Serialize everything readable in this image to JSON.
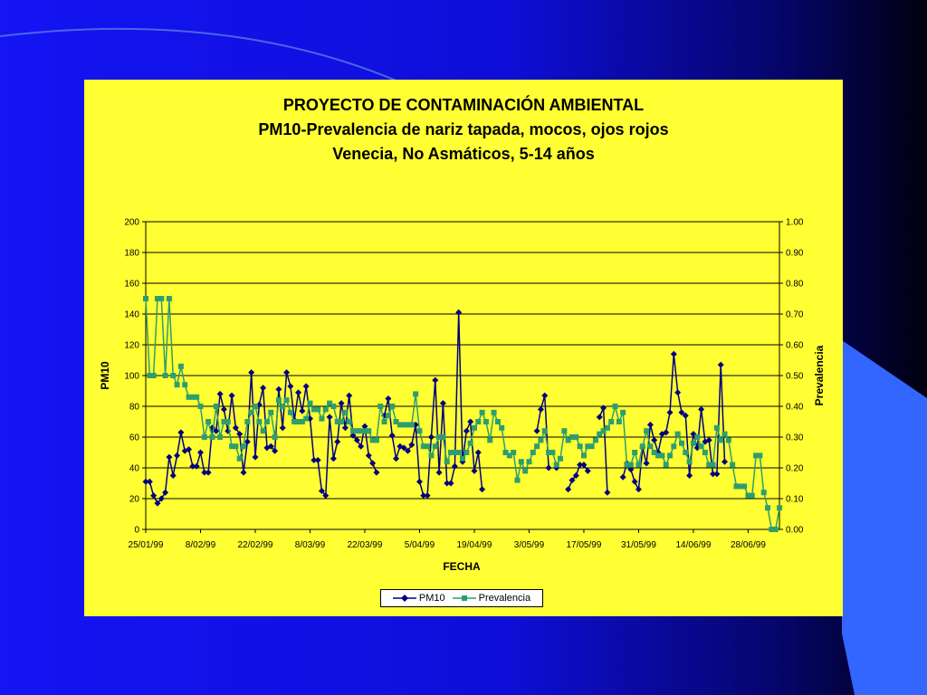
{
  "chart_data": {
    "type": "line",
    "title": [
      "PROYECTO DE CONTAMINACIÓN AMBIENTAL",
      "PM10-Prevalencia de nariz tapada, mocos, ojos rojos",
      "Venecia, No Asmáticos, 5-14 años"
    ],
    "xlabel": "FECHA",
    "ylabel": "PM10",
    "y2label": "Prevalencia",
    "x_tick_labels": [
      "25/01/99",
      "8/02/99",
      "22/02/99",
      "8/03/99",
      "22/03/99",
      "5/04/99",
      "19/04/99",
      "3/05/99",
      "17/05/99",
      "31/05/99",
      "14/06/99",
      "28/06/99"
    ],
    "ylim": [
      0,
      200
    ],
    "y_ticks": [
      "0",
      "20",
      "40",
      "60",
      "80",
      "100",
      "120",
      "140",
      "160",
      "180",
      "200"
    ],
    "y2lim": [
      0,
      1
    ],
    "y2_ticks": [
      "0.00",
      "0.10",
      "0.20",
      "0.30",
      "0.40",
      "0.50",
      "0.60",
      "0.70",
      "0.80",
      "0.90",
      "1.00"
    ],
    "grid": true,
    "legend_position": "bottom-center",
    "series": [
      {
        "name": "PM10",
        "axis": "left",
        "color": "#000080",
        "marker": "diamond",
        "values": [
          31,
          31,
          22,
          17,
          20,
          24,
          47,
          35,
          48,
          63,
          51,
          52,
          41,
          41,
          50,
          37,
          37,
          66,
          64,
          88,
          78,
          64,
          87,
          66,
          62,
          37,
          57,
          102,
          47,
          81,
          92,
          53,
          54,
          51,
          91,
          66,
          102,
          93,
          71,
          89,
          77,
          93,
          72,
          45,
          45,
          25,
          22,
          73,
          46,
          57,
          82,
          66,
          87,
          61,
          58,
          54,
          67,
          48,
          43,
          37,
          null,
          74,
          85,
          61,
          46,
          54,
          53,
          51,
          55,
          68,
          31,
          22,
          22,
          60,
          97,
          37,
          82,
          30,
          30,
          41,
          141,
          44,
          64,
          70,
          38,
          50,
          26,
          null,
          null,
          null,
          null,
          null,
          null,
          null,
          null,
          null,
          null,
          null,
          null,
          null,
          64,
          78,
          87,
          40,
          null,
          40,
          null,
          null,
          26,
          32,
          35,
          42,
          42,
          38,
          null,
          null,
          73,
          79,
          24,
          null,
          null,
          null,
          34,
          43,
          39,
          31,
          26,
          53,
          43,
          68,
          58,
          50,
          62,
          63,
          76,
          114,
          89,
          76,
          74,
          35,
          62,
          53,
          78,
          57,
          58,
          36,
          36,
          107,
          44
        ]
      },
      {
        "name": "Prevalencia",
        "axis": "right",
        "color": "#2e9e6e",
        "marker": "square",
        "values": [
          0.75,
          0.5,
          0.5,
          0.75,
          0.75,
          0.5,
          0.75,
          0.5,
          0.47,
          0.53,
          0.47,
          0.43,
          0.43,
          0.43,
          0.4,
          0.3,
          0.35,
          0.3,
          0.4,
          0.3,
          0.35,
          0.35,
          0.27,
          0.27,
          0.23,
          0.27,
          0.35,
          0.38,
          0.4,
          0.35,
          0.32,
          0.35,
          0.38,
          0.3,
          0.42,
          0.4,
          0.42,
          0.38,
          0.35,
          0.35,
          0.35,
          0.36,
          0.41,
          0.39,
          0.39,
          0.36,
          0.39,
          0.41,
          0.4,
          0.35,
          0.35,
          0.38,
          0.35,
          0.32,
          0.32,
          0.32,
          0.32,
          0.32,
          0.29,
          0.29,
          0.4,
          0.35,
          0.37,
          0.4,
          0.35,
          0.34,
          0.34,
          0.34,
          0.34,
          0.44,
          0.32,
          0.27,
          0.27,
          0.24,
          0.27,
          0.3,
          0.3,
          0.22,
          0.25,
          0.25,
          0.25,
          0.23,
          0.25,
          0.28,
          0.33,
          0.35,
          0.38,
          0.35,
          0.29,
          0.38,
          0.35,
          0.33,
          0.25,
          0.24,
          0.25,
          0.16,
          0.22,
          0.19,
          0.22,
          0.25,
          0.27,
          0.29,
          0.32,
          0.25,
          0.25,
          0.21,
          0.23,
          0.32,
          0.29,
          0.3,
          0.3,
          0.27,
          0.24,
          0.27,
          0.27,
          0.29,
          0.31,
          0.32,
          0.33,
          0.35,
          0.4,
          0.35,
          0.38,
          0.21,
          0.21,
          0.25,
          0.21,
          0.27,
          0.32,
          0.27,
          0.25,
          0.24,
          0.24,
          0.21,
          0.24,
          0.27,
          0.31,
          0.28,
          0.25,
          0.22,
          0.28,
          0.3,
          0.27,
          0.25,
          0.21,
          0.21,
          0.33,
          0.29,
          0.31,
          0.29,
          0.21,
          0.14,
          0.14,
          0.14,
          0.11,
          0.11,
          0.24,
          0.24,
          0.12,
          0.07,
          0.0,
          0.0,
          0.07
        ]
      }
    ]
  }
}
